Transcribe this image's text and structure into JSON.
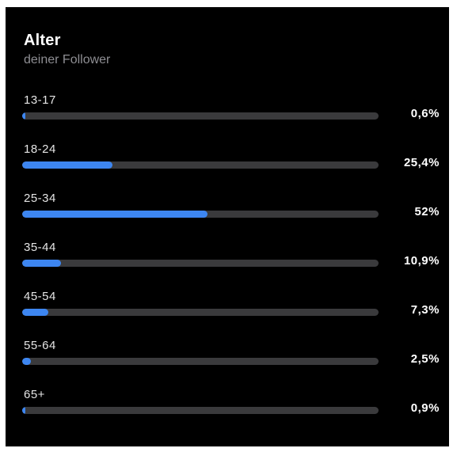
{
  "header": {
    "title": "Alter",
    "subtitle": "deiner Follower"
  },
  "colors": {
    "background": "#000000",
    "bar_fill": "#3d86f1",
    "bar_track": "#3a3a3c",
    "title_text": "#ffffff",
    "subtitle_text": "#8e8e93"
  },
  "age_groups": [
    {
      "label": "13-17",
      "percent_label": "0,6%",
      "value": 0.6
    },
    {
      "label": "18-24",
      "percent_label": "25,4%",
      "value": 25.4
    },
    {
      "label": "25-34",
      "percent_label": "52%",
      "value": 52
    },
    {
      "label": "35-44",
      "percent_label": "10,9%",
      "value": 10.9
    },
    {
      "label": "45-54",
      "percent_label": "7,3%",
      "value": 7.3
    },
    {
      "label": "55-64",
      "percent_label": "2,5%",
      "value": 2.5
    },
    {
      "label": "65+",
      "percent_label": "0,9%",
      "value": 0.9
    }
  ]
}
